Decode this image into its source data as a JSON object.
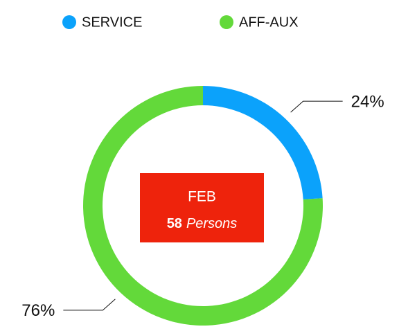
{
  "chart_data": {
    "type": "donut",
    "categories": [
      "SERVICE",
      "AFF-AUX"
    ],
    "values": [
      24,
      76
    ],
    "value_labels": [
      "24%",
      "76%"
    ],
    "colors": [
      "#0ba2fb",
      "#63d93a"
    ],
    "legend": "top",
    "center_label": {
      "month": "FEB",
      "count": 58,
      "unit": "Persons"
    }
  }
}
